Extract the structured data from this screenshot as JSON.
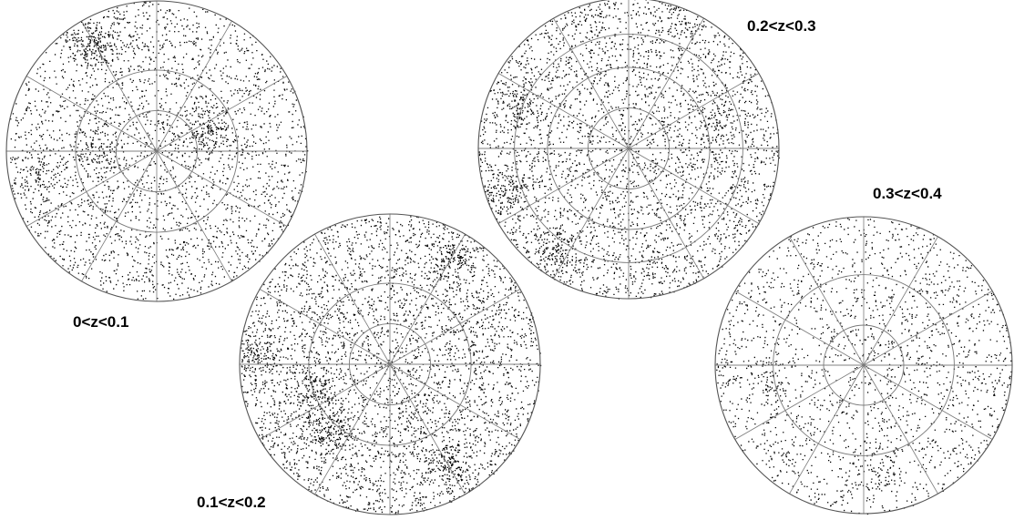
{
  "figure": {
    "description_visible": "Four polar sky maps of point distributions in redshift slices",
    "background_color": "#ffffff",
    "ring_color": "#7a7a7a",
    "point_color": "#000000"
  },
  "panels": [
    {
      "label": "0<z<0.1",
      "ring_fractions": [
        0.27,
        0.54
      ],
      "spoke_count": 12,
      "clusters": [
        {
          "angle_deg": 120,
          "radius_frac": 0.82,
          "strength": 0.9
        },
        {
          "angle_deg": 20,
          "radius_frac": 0.35,
          "strength": 0.7
        },
        {
          "angle_deg": 175,
          "radius_frac": 0.38,
          "strength": 0.5
        },
        {
          "angle_deg": 190,
          "radius_frac": 0.8,
          "strength": 0.4
        }
      ]
    },
    {
      "label": "0.1<z<0.2",
      "ring_fractions": [
        0.27,
        0.54
      ],
      "spoke_count": 12,
      "clusters": [
        {
          "angle_deg": 200,
          "radius_frac": 0.55,
          "strength": 0.8
        },
        {
          "angle_deg": 230,
          "radius_frac": 0.6,
          "strength": 0.7
        },
        {
          "angle_deg": 300,
          "radius_frac": 0.75,
          "strength": 0.6
        },
        {
          "angle_deg": 60,
          "radius_frac": 0.8,
          "strength": 0.6
        },
        {
          "angle_deg": 175,
          "radius_frac": 0.9,
          "strength": 0.6
        }
      ]
    },
    {
      "label": "0.2<z<0.3",
      "ring_fractions": [
        0.27,
        0.54,
        0.76
      ],
      "spoke_count": 12,
      "clusters": [
        {
          "angle_deg": 235,
          "radius_frac": 0.85,
          "strength": 0.7
        },
        {
          "angle_deg": 200,
          "radius_frac": 0.85,
          "strength": 0.5
        },
        {
          "angle_deg": 160,
          "radius_frac": 0.8,
          "strength": 0.5
        },
        {
          "angle_deg": 20,
          "radius_frac": 0.65,
          "strength": 0.4
        }
      ]
    },
    {
      "label": "0.3<z<0.4",
      "ring_fractions": [
        0.27,
        0.61
      ],
      "spoke_count": 12,
      "clusters": [
        {
          "angle_deg": 190,
          "radius_frac": 0.65,
          "strength": 0.3
        },
        {
          "angle_deg": 280,
          "radius_frac": 0.7,
          "strength": 0.3
        }
      ]
    }
  ]
}
